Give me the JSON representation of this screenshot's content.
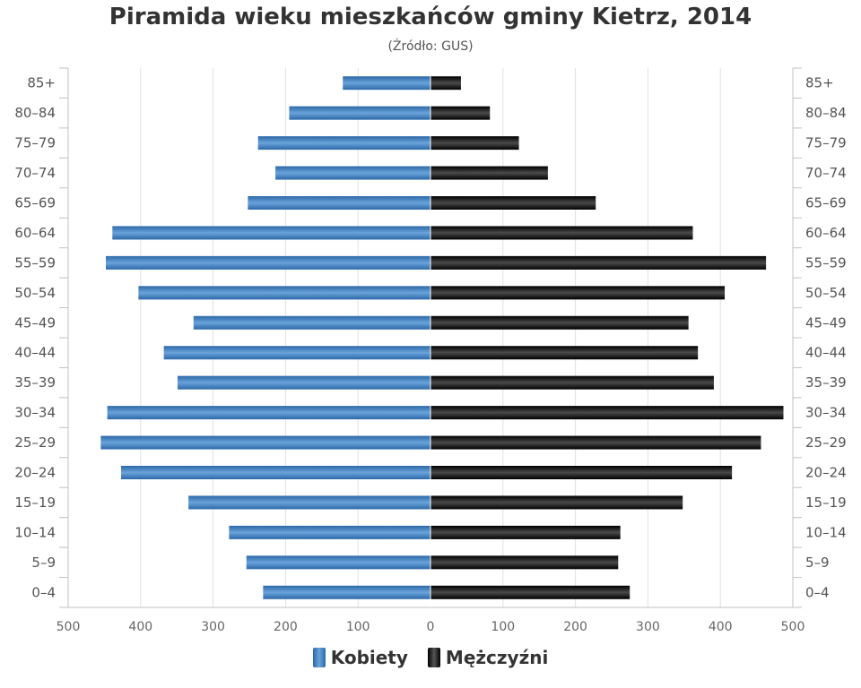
{
  "chart_data": {
    "type": "bar",
    "orientation": "horizontal-population-pyramid",
    "title": "Piramida wieku mieszkańców gminy Kietrz, 2014",
    "subtitle": "(Źródło: GUS)",
    "categories": [
      "85+",
      "80–84",
      "75–79",
      "70–74",
      "65–69",
      "60–64",
      "55–59",
      "50–54",
      "45–49",
      "40–44",
      "35–39",
      "30–34",
      "25–29",
      "20–24",
      "15–19",
      "10–14",
      "5–9",
      "0–4"
    ],
    "series": [
      {
        "name": "Kobiety",
        "color": "#3d7fc1",
        "values": [
          121,
          195,
          238,
          214,
          252,
          439,
          448,
          403,
          327,
          368,
          349,
          446,
          455,
          427,
          334,
          278,
          254,
          231
        ]
      },
      {
        "name": "Mężczyźni",
        "color": "#1a1a1a",
        "values": [
          42,
          82,
          122,
          162,
          228,
          362,
          463,
          406,
          356,
          369,
          391,
          487,
          456,
          416,
          348,
          262,
          259,
          275
        ]
      }
    ],
    "xlim": [
      -500,
      500
    ],
    "x_ticks": [
      500,
      400,
      300,
      200,
      100,
      0,
      100,
      200,
      300,
      400,
      500
    ],
    "grid": true,
    "legend_position": "bottom"
  }
}
